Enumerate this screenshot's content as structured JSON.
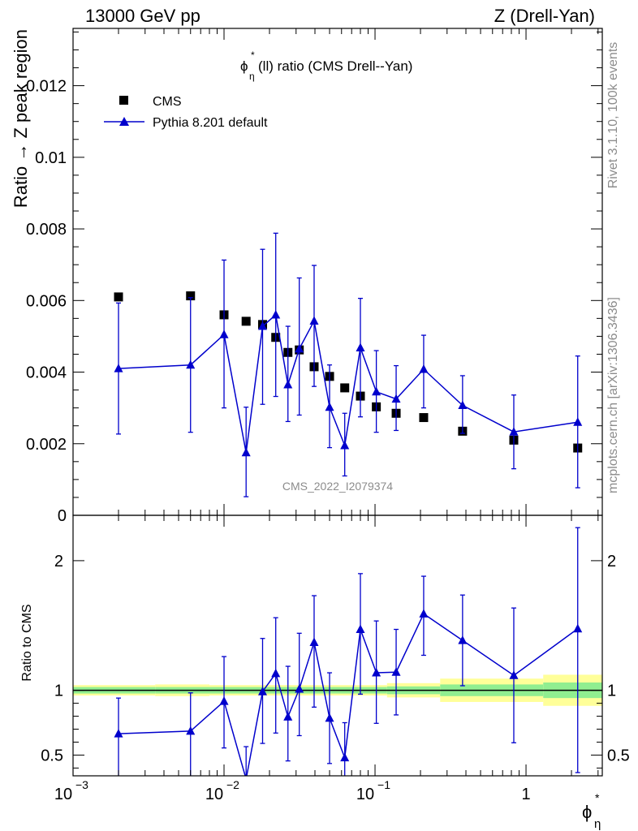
{
  "header": {
    "left": "13000 GeV pp",
    "right": "Z (Drell-Yan)"
  },
  "side_labels": {
    "rivet": "Rivet 3.1.10,  100k events",
    "mcplots": "mcplots.cern.ch [arXiv:1306.3436]"
  },
  "watermark": "CMS_2022_I2079374",
  "colors": {
    "cms": "#000000",
    "pythia": "#0000cc",
    "band_inner": "#90ee90",
    "band_outer": "#ffff99"
  },
  "chart_data": [
    {
      "type": "scatter",
      "title": "ϕ*η(ll) ratio (CMS Drell--Yan)",
      "title_parts": {
        "sym": "ϕ",
        "sup": "*",
        "sub": "η",
        "rest": "(ll) ratio (CMS Drell--Yan)"
      },
      "ylabel": "Ratio → Z peak region",
      "xlabel": "ϕ*η",
      "xscale": "log",
      "xlim": [
        0.001,
        3.2
      ],
      "ylim": [
        0,
        0.0136
      ],
      "yticks": [
        {
          "v": 0,
          "label": "0"
        },
        {
          "v": 0.002,
          "label": "0.002"
        },
        {
          "v": 0.004,
          "label": "0.004"
        },
        {
          "v": 0.006,
          "label": "0.006"
        },
        {
          "v": 0.008,
          "label": "0.008"
        },
        {
          "v": 0.01,
          "label": "0.01"
        },
        {
          "v": 0.012,
          "label": "0.012"
        }
      ],
      "legend": [
        {
          "name": "CMS",
          "marker": "square"
        },
        {
          "name": "Pythia 8.201 default",
          "marker": "triangle"
        }
      ],
      "legend_position": "top-left",
      "series": [
        {
          "name": "CMS",
          "x": [
            0.002,
            0.006,
            0.01,
            0.014,
            0.018,
            0.022,
            0.0265,
            0.0315,
            0.0395,
            0.05,
            0.063,
            0.08,
            0.102,
            0.138,
            0.21,
            0.38,
            0.83,
            2.2
          ],
          "y": [
            0.0061,
            0.00613,
            0.0056,
            0.00542,
            0.00533,
            0.00497,
            0.00455,
            0.00462,
            0.00415,
            0.00388,
            0.00356,
            0.00333,
            0.00303,
            0.00285,
            0.00273,
            0.00235,
            0.0021,
            0.00188
          ]
        },
        {
          "name": "Pythia 8.201 default",
          "x": [
            0.002,
            0.006,
            0.01,
            0.014,
            0.018,
            0.022,
            0.0265,
            0.0315,
            0.0395,
            0.05,
            0.063,
            0.08,
            0.102,
            0.138,
            0.21,
            0.38,
            0.83,
            2.2
          ],
          "y": [
            0.0041,
            0.0042,
            0.00505,
            0.00175,
            0.00528,
            0.0056,
            0.00365,
            0.00465,
            0.00543,
            0.00302,
            0.00195,
            0.00468,
            0.00345,
            0.00325,
            0.00408,
            0.00307,
            0.00233,
            0.0026
          ],
          "err_low": [
            0.00183,
            0.00188,
            0.00205,
            0.00123,
            0.00218,
            0.00228,
            0.00103,
            0.00185,
            0.00183,
            0.00113,
            0.00085,
            0.00193,
            0.00113,
            0.00088,
            0.00108,
            0.00078,
            0.00103,
            0.00183
          ],
          "err_high": [
            0.00183,
            0.00188,
            0.00208,
            0.00127,
            0.00215,
            0.00228,
            0.00163,
            0.00198,
            0.00155,
            0.00118,
            0.0009,
            0.00138,
            0.00115,
            0.00093,
            0.00095,
            0.00083,
            0.00103,
            0.00185
          ]
        }
      ]
    },
    {
      "type": "scatter",
      "ylabel": "Ratio to CMS",
      "xscale": "log",
      "xlim": [
        0.001,
        3.2
      ],
      "ylim": [
        0.34,
        2.35
      ],
      "xticks": [
        {
          "v": 0.001,
          "base": "10",
          "exp": "−3"
        },
        {
          "v": 0.01,
          "base": "10",
          "exp": "−2"
        },
        {
          "v": 0.1,
          "base": "10",
          "exp": "−1"
        },
        {
          "v": 1,
          "base": "1",
          "exp": ""
        }
      ],
      "yticks": [
        {
          "v": 0.5,
          "label": "0.5"
        },
        {
          "v": 1,
          "label": "1"
        },
        {
          "v": 2,
          "label": "2"
        }
      ],
      "bands": [
        {
          "x0": 0.001,
          "x1": 0.0035,
          "inner": [
            0.975,
            1.025
          ],
          "outer": [
            0.96,
            1.04
          ]
        },
        {
          "x0": 0.0035,
          "x1": 0.008,
          "inner": [
            0.975,
            1.025
          ],
          "outer": [
            0.955,
            1.045
          ]
        },
        {
          "x0": 0.008,
          "x1": 0.12,
          "inner": [
            0.975,
            1.025
          ],
          "outer": [
            0.96,
            1.04
          ]
        },
        {
          "x0": 0.12,
          "x1": 0.27,
          "inner": [
            0.97,
            1.03
          ],
          "outer": [
            0.945,
            1.055
          ]
        },
        {
          "x0": 0.27,
          "x1": 1.3,
          "inner": [
            0.955,
            1.045
          ],
          "outer": [
            0.91,
            1.09
          ]
        },
        {
          "x0": 1.3,
          "x1": 3.2,
          "inner": [
            0.94,
            1.06
          ],
          "outer": [
            0.88,
            1.12
          ]
        }
      ],
      "series": [
        {
          "name": "Pythia 8.201 default",
          "x": [
            0.002,
            0.006,
            0.01,
            0.014,
            0.018,
            0.022,
            0.0265,
            0.0315,
            0.0395,
            0.05,
            0.063,
            0.08,
            0.102,
            0.138,
            0.21,
            0.38,
            0.83,
            2.2
          ],
          "y": [
            0.665,
            0.685,
            0.915,
            0.315,
            0.99,
            1.13,
            0.795,
            1.01,
            1.37,
            0.785,
            0.48,
            1.47,
            1.135,
            1.14,
            1.59,
            1.385,
            1.115,
            1.475
          ],
          "err_low": [
            0.57,
            0.56,
            0.36,
            0.25,
            0.4,
            0.46,
            0.34,
            0.36,
            0.5,
            0.35,
            0.25,
            0.5,
            0.39,
            0.33,
            0.32,
            0.35,
            0.52,
            1.11
          ],
          "err_high": [
            0.275,
            0.295,
            0.345,
            0.25,
            0.41,
            0.43,
            0.39,
            0.43,
            0.36,
            0.35,
            0.27,
            0.43,
            0.4,
            0.33,
            0.29,
            0.35,
            0.52,
            0.78
          ]
        }
      ]
    }
  ]
}
